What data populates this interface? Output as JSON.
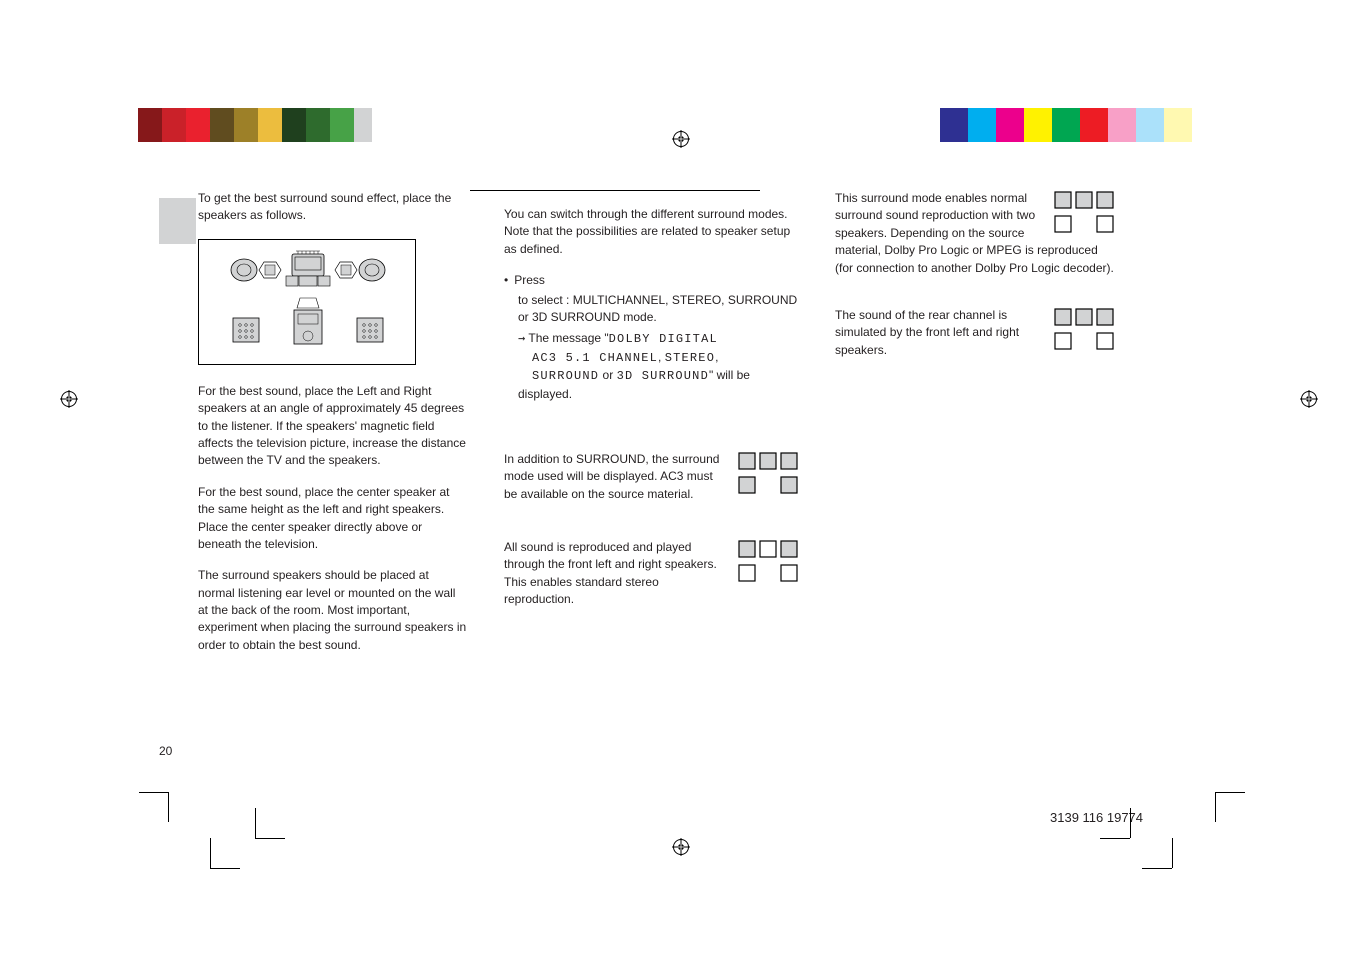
{
  "topbar_left_colors": [
    "#86181a",
    "#ca2129",
    "#ea212e",
    "#604c1f",
    "#9d8028",
    "#ecbd3e",
    "#1f401e",
    "#2e6b2d",
    "#47a247",
    "#d2d3d4",
    "#ffffff"
  ],
  "topbar_left_widths": [
    24,
    24,
    24,
    24,
    24,
    24,
    24,
    24,
    24,
    18,
    16
  ],
  "topbar_right_colors": [
    "#2e3092",
    "#00aeef",
    "#ec008c",
    "#fff200",
    "#00a651",
    "#ed1c24",
    "#f8a0c7",
    "#abe1fa",
    "#fff9b1"
  ],
  "topbar_right_widths": [
    28,
    28,
    28,
    28,
    28,
    28,
    28,
    28,
    28
  ],
  "intro": "To get the best surround sound effect, place the speakers as follows.",
  "front_para": "For the best sound, place the Left and Right speakers at an angle of approximately 45 degrees to the listener. If the speakers' magnetic field affects the television picture, increase the distance between the TV and the speakers.",
  "center_para": "For the best sound, place the center speaker at the same height as the left and right speakers. Place the center speaker directly above or beneath the television.",
  "surround_para": "The surround speakers should be placed at normal listening ear level or mounted on the wall at the back of the room. Most important, experiment when placing the surround speakers in order to obtain the best sound.",
  "col2_intro": "You can switch through the different surround modes.  Note that the possibilities are related to speaker setup as defined.",
  "press_label": "Press",
  "press_tail": "to select : MULTICHANNEL, STEREO, SURROUND or 3D SURROUND mode.",
  "msg_prefix": "The message \"",
  "msg_lcd1": "DOLBY DIGITAL",
  "msg_lcd2": "AC3 5.1 CHANNEL",
  "msg_lcd3": "STEREO",
  "msg_lcd4": "SURROUND",
  "msg_or": " or ",
  "msg_lcd5": "3D SURROUND",
  "msg_suffix": "\" will be displayed.",
  "multichannel_para": "In addition to SURROUND, the surround mode used will be displayed.  AC3 must be available on the source material.",
  "stereo_para": "All sound is reproduced and played through the front left and right speakers.  This enables standard stereo reproduction.",
  "surround_mode_para": "This surround mode enables normal surround sound reproduction with two speakers.  Depending on the source material, Dolby Pro Logic or MPEG is reproduced (for connection to another Dolby Pro Logic decoder).",
  "three_d_para": "The sound of the rear channel is simulated by the front left and right speakers.",
  "page_number": "20",
  "part_number": "3139 116 19774",
  "icon_fill": "#d2d3d4",
  "icon_stroke": "#000000",
  "speaker_grid": {
    "multichannel": {
      "tl": true,
      "tc": true,
      "tr": true,
      "bl": true,
      "br": true
    },
    "stereo": {
      "tl": true,
      "tc": false,
      "tr": true,
      "bl": false,
      "br": false
    },
    "surround": {
      "tl": true,
      "tc": true,
      "tr": true,
      "bl": false,
      "br": false
    },
    "three_d": {
      "tl": true,
      "tc": true,
      "tr": true,
      "bl": false,
      "br": false
    }
  }
}
